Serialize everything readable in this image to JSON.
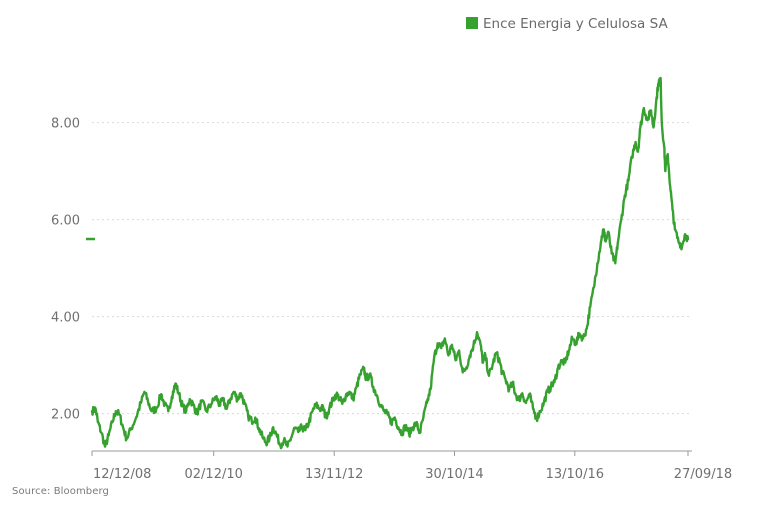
{
  "chart_data": {
    "type": "line",
    "title": "",
    "xlabel": "",
    "ylabel": "",
    "ylim": [
      1.25,
      9.6
    ],
    "y_ticks": [
      2.0,
      4.0,
      6.0,
      8.0
    ],
    "y_tick_labels": [
      "2.00",
      "4.00",
      "6.00",
      "8.00"
    ],
    "x_tick_labels": [
      "12/12/08",
      "02/12/10",
      "13/11/12",
      "30/10/14",
      "13/10/16",
      "27/09/18"
    ],
    "x_ticks": [
      0.0,
      0.2042,
      0.4064,
      0.6082,
      0.8101,
      1.0
    ],
    "grid": true,
    "legend_position": "top-right",
    "last_value": 5.6,
    "series": [
      {
        "name": "Ence Energia y Celulosa SA",
        "color": "#36a12f",
        "points": [
          [
            0.0,
            2.05
          ],
          [
            0.006,
            2.1
          ],
          [
            0.01,
            1.82
          ],
          [
            0.016,
            1.6
          ],
          [
            0.022,
            1.32
          ],
          [
            0.028,
            1.55
          ],
          [
            0.034,
            1.82
          ],
          [
            0.04,
            2.05
          ],
          [
            0.046,
            1.98
          ],
          [
            0.052,
            1.72
          ],
          [
            0.058,
            1.48
          ],
          [
            0.066,
            1.7
          ],
          [
            0.074,
            1.92
          ],
          [
            0.082,
            2.22
          ],
          [
            0.088,
            2.45
          ],
          [
            0.094,
            2.25
          ],
          [
            0.1,
            2.05
          ],
          [
            0.108,
            2.1
          ],
          [
            0.116,
            2.4
          ],
          [
            0.122,
            2.18
          ],
          [
            0.128,
            2.05
          ],
          [
            0.134,
            2.35
          ],
          [
            0.14,
            2.62
          ],
          [
            0.146,
            2.4
          ],
          [
            0.152,
            2.15
          ],
          [
            0.158,
            2.05
          ],
          [
            0.164,
            2.3
          ],
          [
            0.17,
            2.18
          ],
          [
            0.176,
            2.0
          ],
          [
            0.184,
            2.25
          ],
          [
            0.192,
            2.05
          ],
          [
            0.2,
            2.2
          ],
          [
            0.208,
            2.35
          ],
          [
            0.214,
            2.18
          ],
          [
            0.22,
            2.28
          ],
          [
            0.226,
            2.1
          ],
          [
            0.232,
            2.3
          ],
          [
            0.238,
            2.45
          ],
          [
            0.244,
            2.3
          ],
          [
            0.25,
            2.42
          ],
          [
            0.256,
            2.2
          ],
          [
            0.262,
            1.95
          ],
          [
            0.268,
            1.85
          ],
          [
            0.274,
            1.92
          ],
          [
            0.28,
            1.7
          ],
          [
            0.286,
            1.52
          ],
          [
            0.292,
            1.4
          ],
          [
            0.298,
            1.5
          ],
          [
            0.304,
            1.72
          ],
          [
            0.31,
            1.55
          ],
          [
            0.316,
            1.35
          ],
          [
            0.322,
            1.45
          ],
          [
            0.328,
            1.32
          ],
          [
            0.334,
            1.5
          ],
          [
            0.34,
            1.7
          ],
          [
            0.346,
            1.62
          ],
          [
            0.352,
            1.72
          ],
          [
            0.358,
            1.66
          ],
          [
            0.364,
            1.82
          ],
          [
            0.37,
            2.05
          ],
          [
            0.376,
            2.18
          ],
          [
            0.382,
            2.1
          ],
          [
            0.388,
            2.12
          ],
          [
            0.392,
            1.92
          ],
          [
            0.398,
            2.1
          ],
          [
            0.404,
            2.28
          ],
          [
            0.41,
            2.4
          ],
          [
            0.416,
            2.3
          ],
          [
            0.42,
            2.2
          ],
          [
            0.426,
            2.38
          ],
          [
            0.432,
            2.45
          ],
          [
            0.438,
            2.3
          ],
          [
            0.444,
            2.55
          ],
          [
            0.45,
            2.8
          ],
          [
            0.456,
            2.92
          ],
          [
            0.46,
            2.72
          ],
          [
            0.466,
            2.8
          ],
          [
            0.472,
            2.55
          ],
          [
            0.478,
            2.38
          ],
          [
            0.484,
            2.18
          ],
          [
            0.49,
            2.05
          ],
          [
            0.496,
            1.98
          ],
          [
            0.502,
            1.82
          ],
          [
            0.508,
            1.92
          ],
          [
            0.514,
            1.72
          ],
          [
            0.52,
            1.6
          ],
          [
            0.526,
            1.75
          ],
          [
            0.532,
            1.58
          ],
          [
            0.538,
            1.72
          ],
          [
            0.544,
            1.8
          ],
          [
            0.55,
            1.6
          ],
          [
            0.556,
            1.92
          ],
          [
            0.562,
            2.22
          ],
          [
            0.568,
            2.5
          ],
          [
            0.574,
            3.15
          ],
          [
            0.58,
            3.45
          ],
          [
            0.586,
            3.35
          ],
          [
            0.592,
            3.55
          ],
          [
            0.598,
            3.2
          ],
          [
            0.604,
            3.42
          ],
          [
            0.61,
            3.1
          ],
          [
            0.616,
            3.3
          ],
          [
            0.622,
            2.85
          ],
          [
            0.628,
            2.95
          ],
          [
            0.634,
            3.2
          ],
          [
            0.64,
            3.4
          ],
          [
            0.646,
            3.68
          ],
          [
            0.652,
            3.42
          ],
          [
            0.656,
            3.05
          ],
          [
            0.66,
            3.2
          ],
          [
            0.666,
            2.78
          ],
          [
            0.672,
            3.0
          ],
          [
            0.678,
            3.25
          ],
          [
            0.684,
            3.08
          ],
          [
            0.688,
            2.85
          ],
          [
            0.694,
            2.7
          ],
          [
            0.7,
            2.5
          ],
          [
            0.706,
            2.62
          ],
          [
            0.71,
            2.42
          ],
          [
            0.716,
            2.28
          ],
          [
            0.722,
            2.42
          ],
          [
            0.728,
            2.22
          ],
          [
            0.734,
            2.4
          ],
          [
            0.74,
            2.1
          ],
          [
            0.746,
            1.9
          ],
          [
            0.752,
            2.05
          ],
          [
            0.758,
            2.22
          ],
          [
            0.764,
            2.45
          ],
          [
            0.77,
            2.55
          ],
          [
            0.776,
            2.65
          ],
          [
            0.782,
            2.95
          ],
          [
            0.788,
            3.08
          ],
          [
            0.794,
            3.05
          ],
          [
            0.8,
            3.3
          ],
          [
            0.806,
            3.55
          ],
          [
            0.812,
            3.45
          ],
          [
            0.818,
            3.65
          ],
          [
            0.824,
            3.55
          ],
          [
            0.83,
            3.75
          ],
          [
            0.836,
            4.2
          ],
          [
            0.842,
            4.6
          ],
          [
            0.848,
            5.1
          ],
          [
            0.854,
            5.55
          ],
          [
            0.858,
            5.8
          ],
          [
            0.862,
            5.55
          ],
          [
            0.866,
            5.75
          ],
          [
            0.872,
            5.3
          ],
          [
            0.878,
            5.1
          ],
          [
            0.882,
            5.5
          ],
          [
            0.888,
            6.0
          ],
          [
            0.894,
            6.5
          ],
          [
            0.9,
            6.8
          ],
          [
            0.906,
            7.3
          ],
          [
            0.912,
            7.6
          ],
          [
            0.916,
            7.4
          ],
          [
            0.92,
            7.9
          ],
          [
            0.926,
            8.3
          ],
          [
            0.932,
            8.05
          ],
          [
            0.938,
            8.25
          ],
          [
            0.942,
            7.9
          ],
          [
            0.946,
            8.35
          ],
          [
            0.95,
            8.8
          ],
          [
            0.954,
            8.92
          ],
          [
            0.956,
            8.0
          ],
          [
            0.96,
            7.5
          ],
          [
            0.962,
            7.0
          ],
          [
            0.966,
            7.35
          ],
          [
            0.97,
            6.7
          ],
          [
            0.974,
            6.2
          ],
          [
            0.978,
            5.8
          ],
          [
            0.984,
            5.55
          ],
          [
            0.99,
            5.45
          ],
          [
            0.995,
            5.7
          ],
          [
            1.0,
            5.6
          ]
        ]
      }
    ]
  },
  "legend": {
    "label": "Ence Energia y Celulosa SA",
    "color": "#36a12f"
  },
  "footer": {
    "source": "Source: Bloomberg"
  },
  "colors": {
    "line": "#36a12f",
    "grid": "#dadada",
    "axis": "#9a9a9a",
    "label": "#707070"
  }
}
